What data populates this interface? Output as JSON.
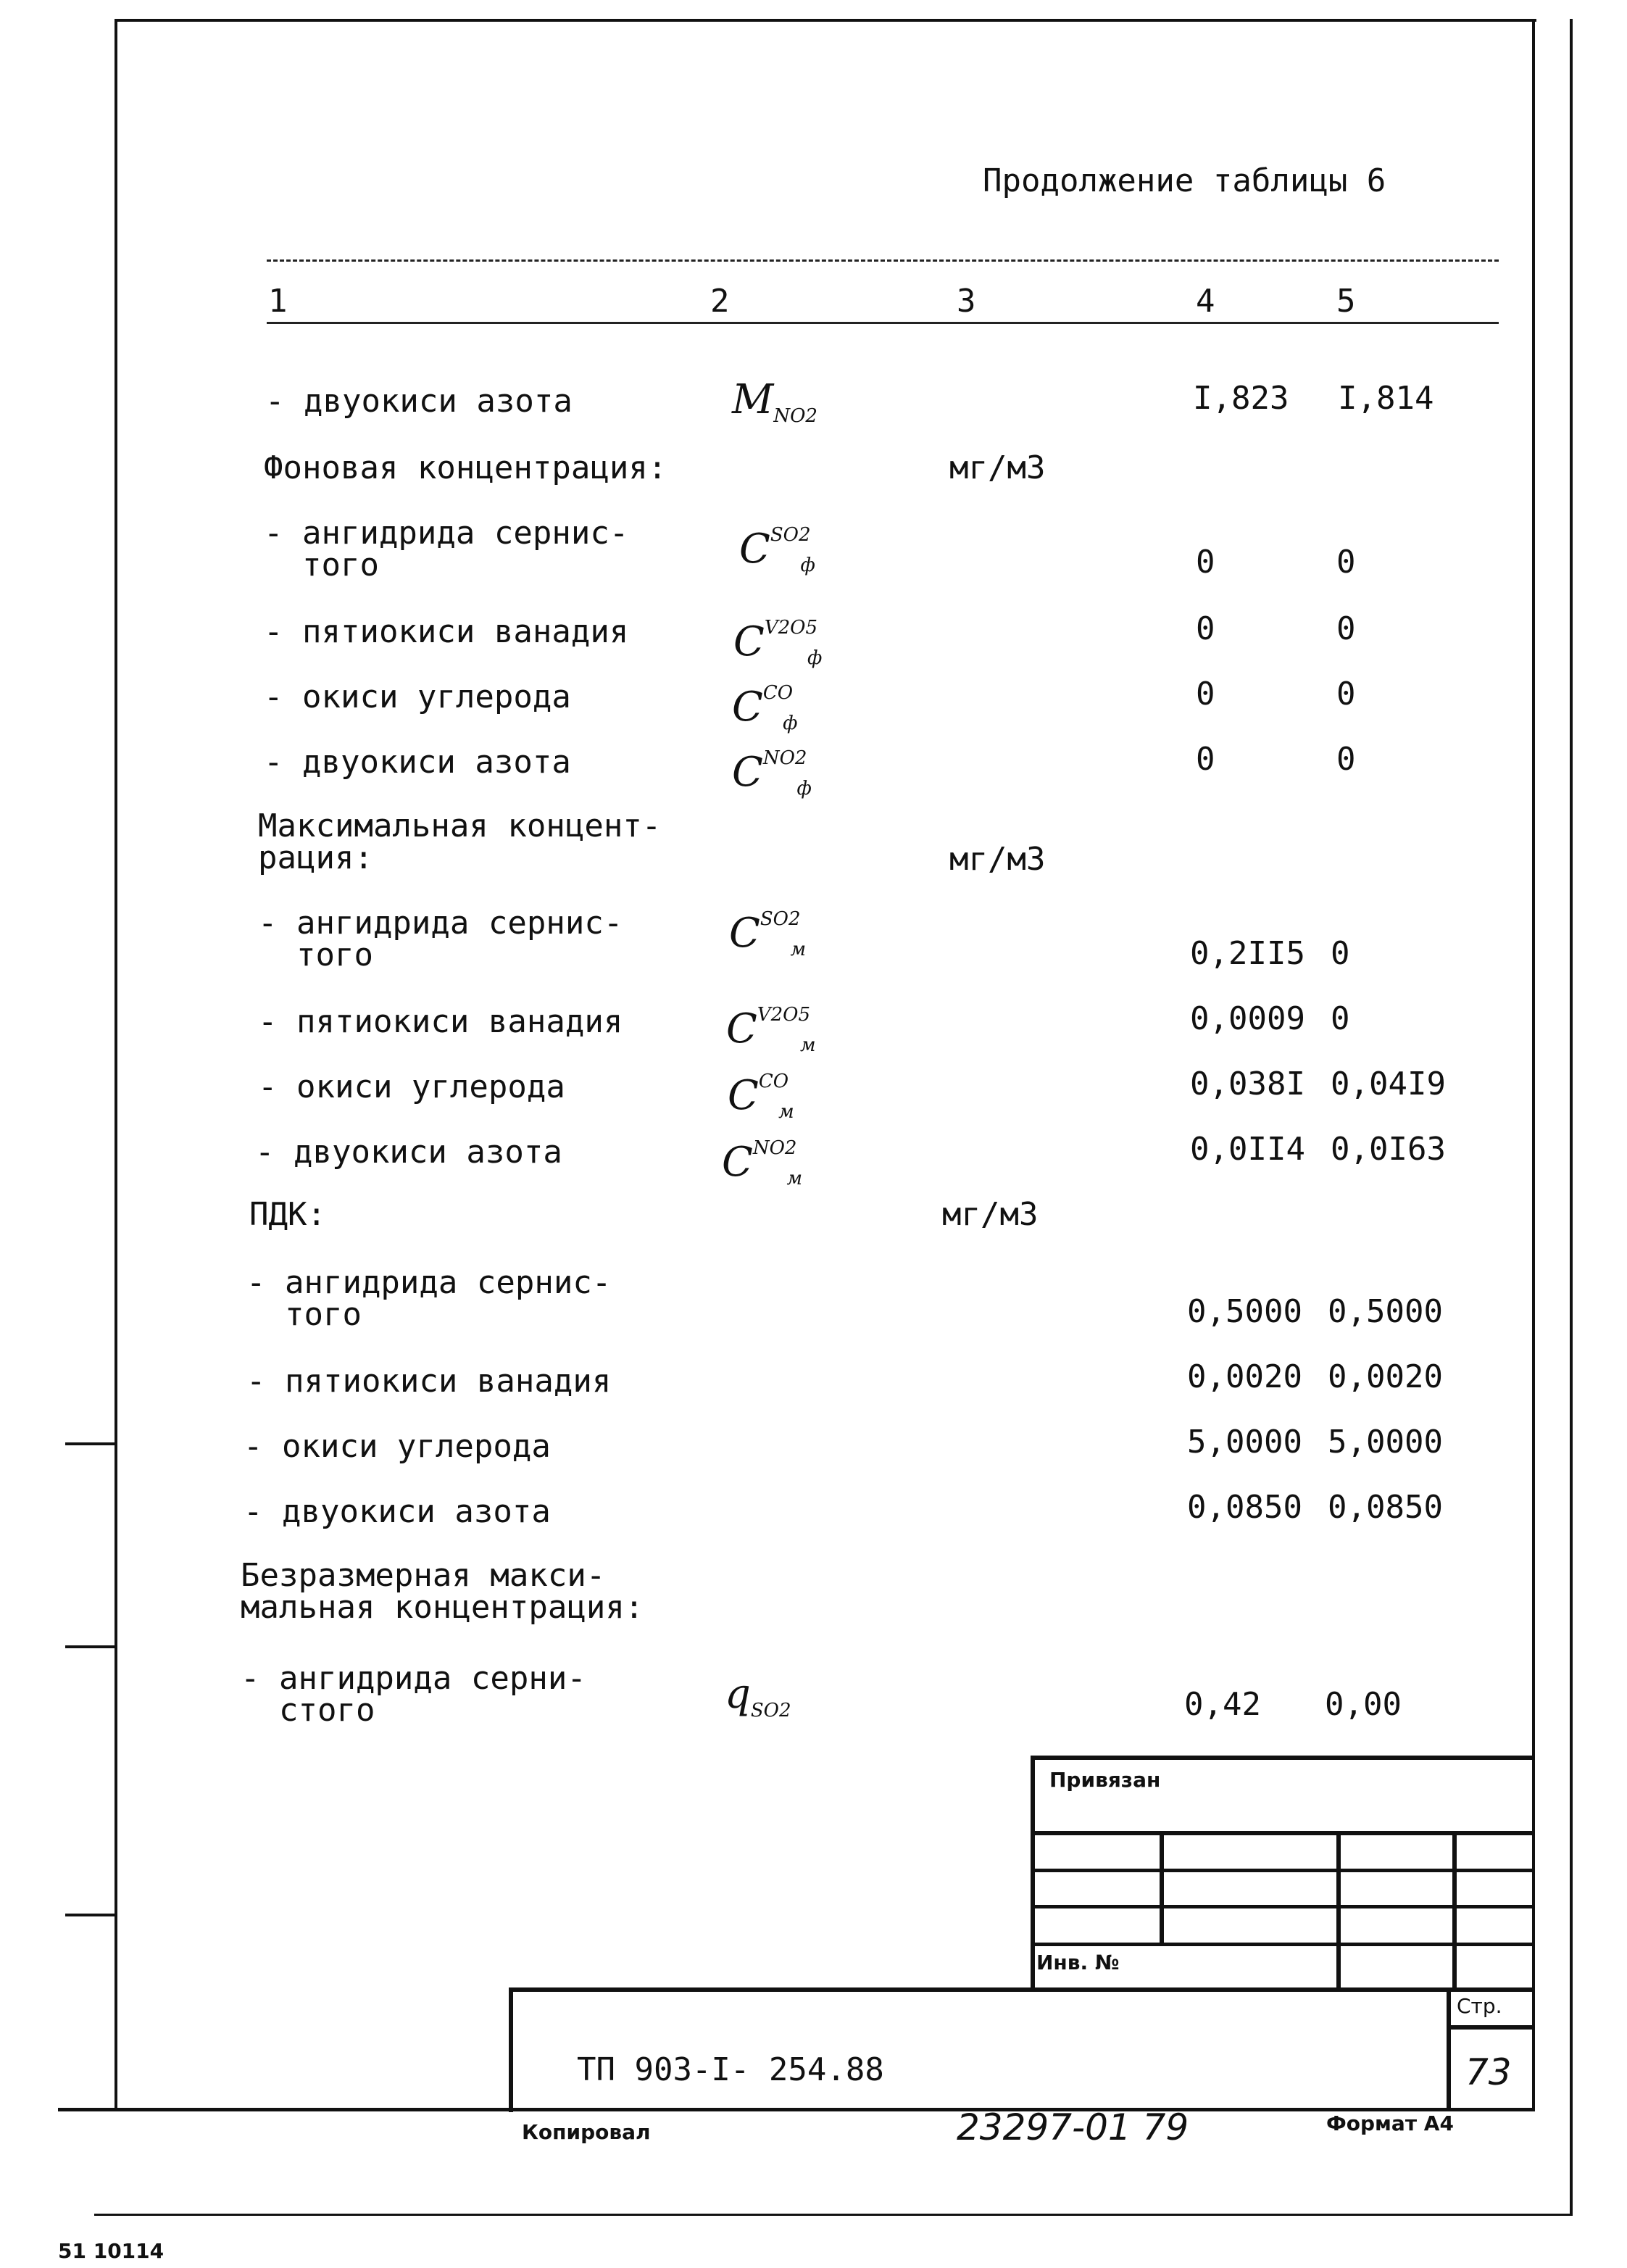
{
  "title": "Продолжение таблицы 6",
  "columns": [
    "1",
    "2",
    "3",
    "4",
    "5"
  ],
  "rows": [
    {
      "label": "- двуокиси азота",
      "symbol": "M",
      "sub": "NO2",
      "v4": "I,823",
      "v5": "I,814"
    },
    {
      "label": "Фоновая концентрация:",
      "unit": "мг/м3"
    },
    {
      "label": "- ангидрида сернис-\n  того",
      "symbol": "C",
      "sup": "SO2",
      "sub": "ф",
      "v4": "0",
      "v5": "0"
    },
    {
      "label": "- пятиокиси ванадия",
      "symbol": "C",
      "sup": "V2O5",
      "sub": "ф",
      "v4": "0",
      "v5": "0"
    },
    {
      "label": "- окиси углерода",
      "symbol": "C",
      "sup": "CO",
      "sub": "ф",
      "v4": "0",
      "v5": "0"
    },
    {
      "label": "- двуокиси азота",
      "symbol": "C",
      "sup": "NO2",
      "sub": "ф",
      "v4": "0",
      "v5": "0"
    },
    {
      "label": "Максимальная концент-\nрация:",
      "unit": "мг/м3"
    },
    {
      "label": "- ангидрида сернис-\n  того",
      "symbol": "C",
      "sup": "SO2",
      "sub": "м",
      "v4": "0,2II5",
      "v5": "0"
    },
    {
      "label": "- пятиокиси ванадия",
      "symbol": "C",
      "sup": "V2O5",
      "sub": "м",
      "v4": "0,0009",
      "v5": "0"
    },
    {
      "label": "- окиси углерода",
      "symbol": "C",
      "sup": "CO",
      "sub": "м",
      "v4": "0,038I",
      "v5": "0,04I9"
    },
    {
      "label": "- двуокиси азота",
      "symbol": "C",
      "sup": "NO2",
      "sub": "м",
      "v4": "0,0II4",
      "v5": "0,0I63"
    },
    {
      "label": "ПДК:",
      "unit": "мг/м3"
    },
    {
      "label": "- ангидрида сернис-\n  того",
      "v4": "0,5000",
      "v5": "0,5000"
    },
    {
      "label": "- пятиокиси ванадия",
      "v4": "0,0020",
      "v5": "0,0020"
    },
    {
      "label": "- окиси углерода",
      "v4": "5,0000",
      "v5": "5,0000"
    },
    {
      "label": "- двуокиси азота",
      "v4": "0,0850",
      "v5": "0,0850"
    },
    {
      "label": "Безразмерная макси-\nмальная концентрация:"
    },
    {
      "label": "- ангидрида серни-\n  стого",
      "symbol": "q",
      "sub": "SO2",
      "v4": "0,42",
      "v5": "0,00"
    }
  ],
  "stamp": {
    "linked": "Привязан",
    "inv": "Инв. №",
    "page_label": "Стр.",
    "page": "73",
    "doc_code": "ТП 903-I- 254.88"
  },
  "footer": {
    "copied": "Копировал",
    "number": "23297-01  79",
    "format": "Формат А4",
    "corner": "51 10114"
  }
}
